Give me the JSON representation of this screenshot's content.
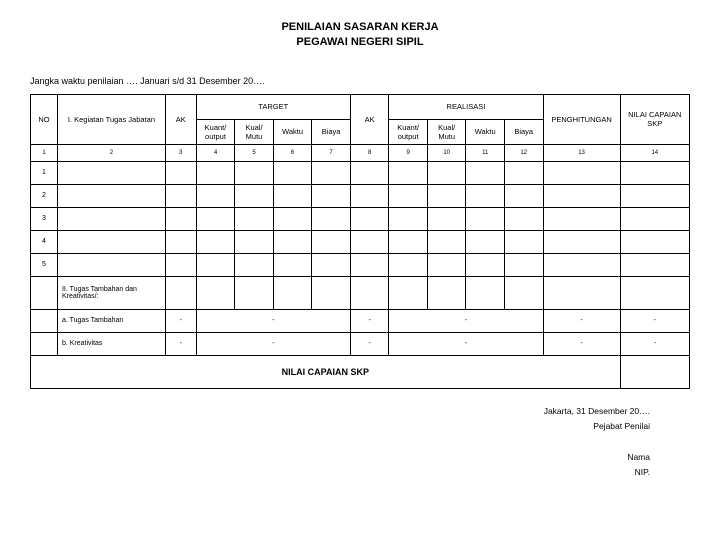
{
  "title_line1": "PENILAIAN SASARAN KERJA",
  "title_line2": "PEGAWAI NEGERI SIPIL",
  "period": "Jangka waktu penilaian …. Januari s/d 31 Desember 20….",
  "headers": {
    "no": "NO",
    "kegiatan": "I. Kegiatan Tugas Jabatan",
    "ak": "AK",
    "target": "TARGET",
    "realisasi": "REALISASI",
    "penghitungan": "PENGHITUNGAN",
    "nilai": "NILAI CAPAIAN SKP",
    "kuant": "Kuant/ output",
    "kual": "Kual/ Mutu",
    "waktu": "Waktu",
    "biaya": "Biaya",
    "kuant2": "Kuant/ output",
    "kual2": "Kual/ Mutu",
    "waktu2": "Waktu",
    "biaya2": "Biaya"
  },
  "col_nums": [
    "1",
    "2",
    "3",
    "4",
    "5",
    "6",
    "7",
    "8",
    "9",
    "10",
    "11",
    "12",
    "13",
    "14"
  ],
  "row_nums": [
    "1",
    "2",
    "3",
    "4",
    "5"
  ],
  "section2": "II. Tugas Tambahan dan Kreativitas/:",
  "sub_a": "a. Tugas Tambahan",
  "sub_b": "b. Kreativitas",
  "dash": "-",
  "total": "NILAI CAPAIAN SKP",
  "footer": {
    "place": "Jakarta, 31 Desember 20….",
    "role": "Pejabat Penilai",
    "nama": "Nama",
    "nip": "NIP."
  }
}
